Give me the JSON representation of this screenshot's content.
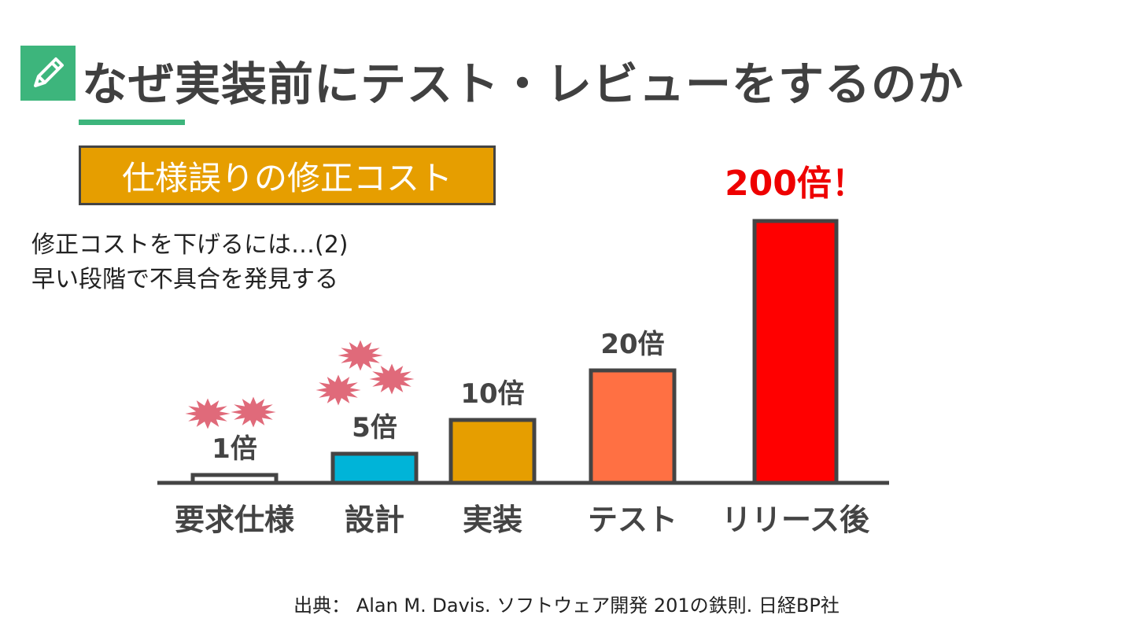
{
  "header": {
    "title": "なぜ実装前にテスト・レビューをするのか",
    "icon": "pencil-icon",
    "accent_color": "#3db57c"
  },
  "label_box": {
    "text": "仕様誤りの修正コスト",
    "color": "#e69e00"
  },
  "note": {
    "lines": [
      "修正コストを下げるには…(2)",
      "早い段階で不具合を発見する"
    ]
  },
  "chart_data": {
    "type": "bar",
    "categories": [
      "要求仕様",
      "設計",
      "実装",
      "テスト",
      "リリース後"
    ],
    "values": [
      1,
      5,
      10,
      20,
      200
    ],
    "value_labels": [
      "1倍",
      "5倍",
      "10倍",
      "20倍",
      "200倍！"
    ],
    "colors": [
      "#ffffff",
      "#00b4d8",
      "#e69e00",
      "#ff7043",
      "#ff0000"
    ],
    "label_colors": [
      "#444444",
      "#444444",
      "#444444",
      "#444444",
      "#ee0000"
    ],
    "bug_markers": [
      2,
      3,
      0,
      0,
      0
    ],
    "bug_color": "#e06a7a"
  },
  "source": {
    "text": "出典： Alan M. Davis. ソフトウェア開発 201の鉄則. 日経BP社"
  }
}
